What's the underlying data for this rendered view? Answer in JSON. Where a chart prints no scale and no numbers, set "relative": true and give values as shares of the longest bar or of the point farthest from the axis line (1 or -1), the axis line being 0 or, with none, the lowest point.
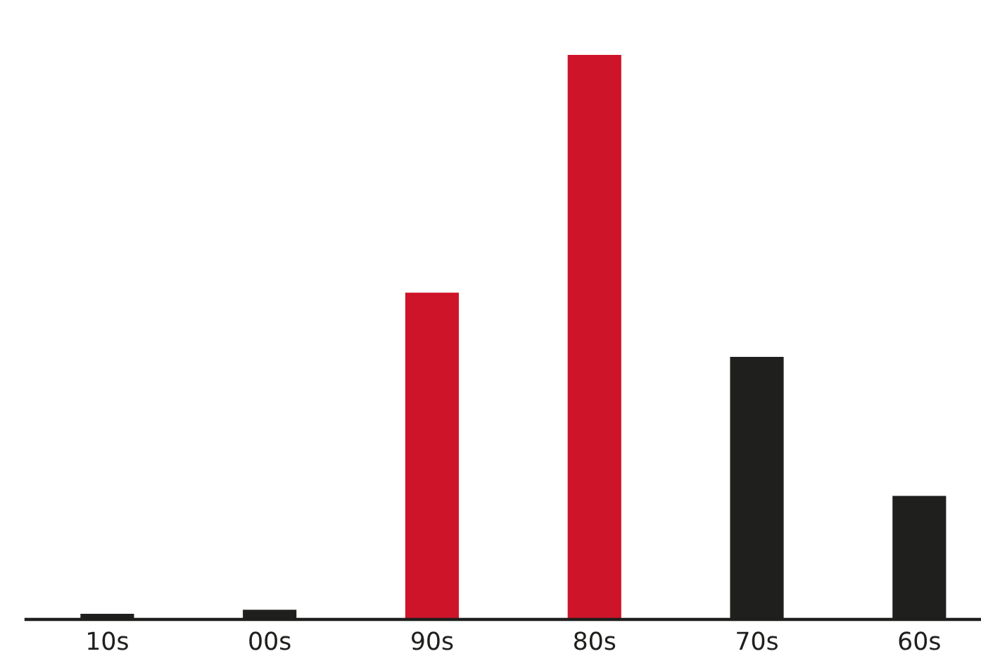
{
  "chart_data": {
    "type": "bar",
    "relative": true,
    "categories": [
      "10s",
      "00s",
      "90s",
      "80s",
      "70s",
      "60s"
    ],
    "values": [
      0.01,
      0.017,
      0.579,
      1,
      0.465,
      0.219
    ],
    "colors": [
      "#1f1f1d",
      "#1f1f1d",
      "#ce1429",
      "#ce1429",
      "#1f1f1d",
      "#1f1f1d"
    ],
    "grid": false,
    "legend": false
  }
}
